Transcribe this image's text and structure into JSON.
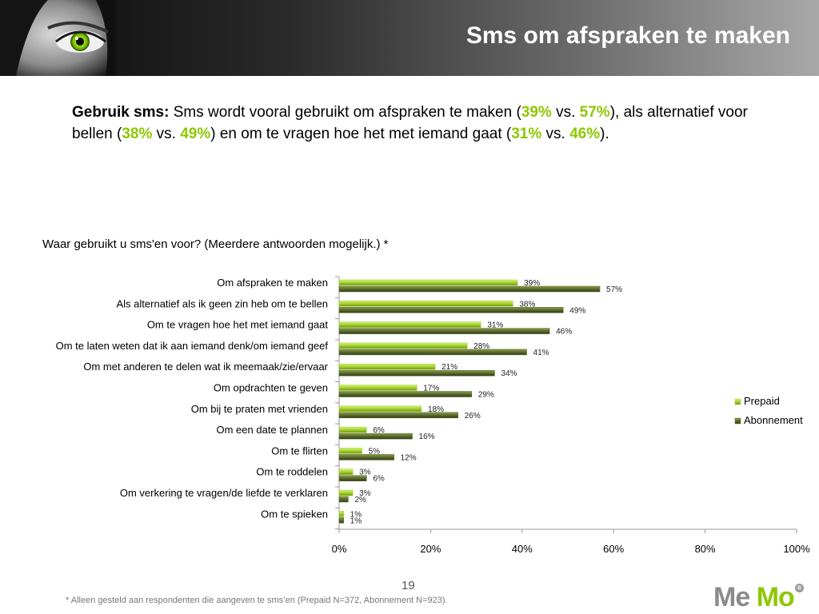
{
  "slide": {
    "title": "Sms om afspraken te maken",
    "number": "19",
    "footnote": "* Alleen gesteld aan respondenten die aangeven te sms’en (Prepaid N=372, Abonnement N=923).",
    "logo": {
      "me": "Me",
      "mo": "Mo"
    }
  },
  "intro": {
    "lead": "Gebruik sms:",
    "t1": " Sms wordt vooral gebruikt om afspraken te maken (",
    "v1": "39%",
    "t2": " vs. ",
    "v2": "57%",
    "t3": "), als alternatief voor bellen (",
    "v3": "38%",
    "t4": " vs. ",
    "v4": "49%",
    "t5": ") en om te vragen hoe het met iemand gaat (",
    "v5": "31%",
    "t6": " vs. ",
    "v6": "46%",
    "t7": ")."
  },
  "colors": {
    "prepaid": "#a2d22e",
    "abonnement": "#5b6b2e",
    "highlight": "#8cc800"
  },
  "chart_data": {
    "type": "bar",
    "orientation": "horizontal",
    "title": "Waar gebruikt u sms'en voor? (Meerdere antwoorden mogelijk.) *",
    "categories": [
      "Om afspraken te maken",
      "Als alternatief als ik geen zin heb om te bellen",
      "Om te vragen hoe het met iemand gaat",
      "Om te laten weten dat ik aan iemand denk/om iemand geef",
      "Om met anderen te delen wat ik meemaak/zie/ervaar",
      "Om opdrachten te geven",
      "Om bij te praten met vrienden",
      "Om een date te plannen",
      "Om te flirten",
      "Om te roddelen",
      "Om verkering te vragen/de liefde te verklaren",
      "Om te spieken"
    ],
    "series": [
      {
        "name": "Prepaid",
        "values": [
          39,
          38,
          31,
          28,
          21,
          17,
          18,
          6,
          5,
          3,
          3,
          1
        ]
      },
      {
        "name": "Abonnement",
        "values": [
          57,
          49,
          46,
          41,
          34,
          29,
          26,
          16,
          12,
          6,
          2,
          1
        ]
      }
    ],
    "value_suffix": "%",
    "xlim": [
      0,
      100
    ],
    "xticks": [
      "0%",
      "20%",
      "40%",
      "60%",
      "80%",
      "100%"
    ],
    "grid": false,
    "legend": "right"
  }
}
